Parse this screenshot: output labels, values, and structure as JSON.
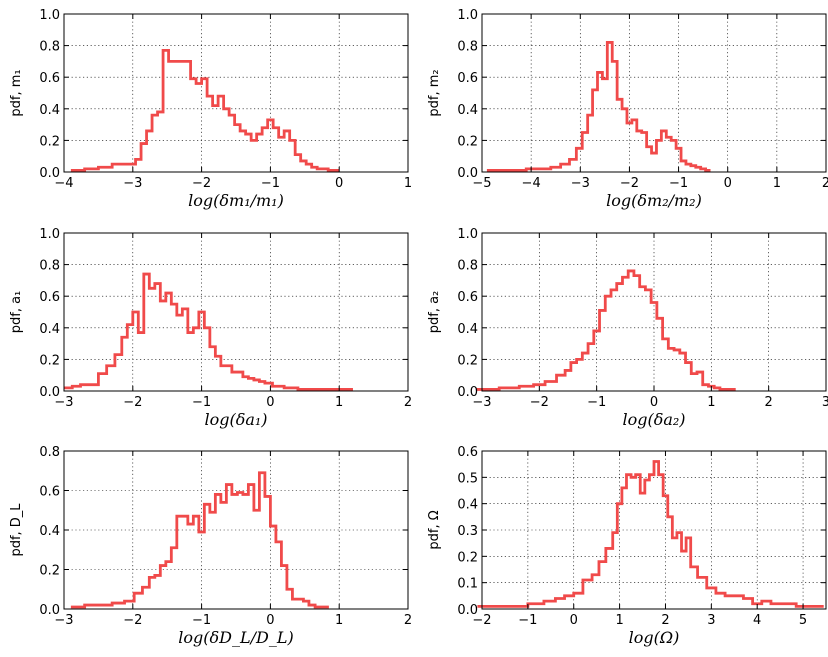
{
  "chart_data": [
    {
      "type": "line",
      "drawstyle": "steps",
      "xlabel": "log(δm₁/m₁)",
      "ylabel": "pdf, m₁",
      "xlim": [
        -4,
        1
      ],
      "ylim": [
        0,
        1.0
      ],
      "xticks": [
        -4,
        -3,
        -2,
        -1,
        0,
        1
      ],
      "xtick_labels": [
        "−4",
        "−3",
        "−2",
        "−1",
        "0",
        "1"
      ],
      "yticks": [
        0,
        0.2,
        0.4,
        0.6,
        0.8,
        1.0
      ],
      "ytick_labels": [
        "0.0",
        "0.2",
        "0.4",
        "0.6",
        "0.8",
        "1.0"
      ],
      "grid": true,
      "color": "#f04a4a",
      "x": [
        -3.8,
        -3.6,
        -3.4,
        -3.2,
        -3.0,
        -2.92,
        -2.84,
        -2.76,
        -2.68,
        -2.6,
        -2.52,
        -2.44,
        -2.36,
        -2.28,
        -2.2,
        -2.12,
        -2.04,
        -1.96,
        -1.88,
        -1.8,
        -1.72,
        -1.64,
        -1.56,
        -1.48,
        -1.4,
        -1.32,
        -1.24,
        -1.16,
        -1.08,
        -1.0,
        -0.92,
        -0.84,
        -0.76,
        -0.68,
        -0.6,
        -0.52,
        -0.44,
        -0.36,
        -0.28,
        -0.2,
        -0.12,
        -0.04
      ],
      "y": [
        0.01,
        0.02,
        0.03,
        0.05,
        0.05,
        0.08,
        0.18,
        0.26,
        0.36,
        0.38,
        0.77,
        0.7,
        0.7,
        0.7,
        0.7,
        0.59,
        0.56,
        0.59,
        0.48,
        0.42,
        0.48,
        0.4,
        0.36,
        0.3,
        0.26,
        0.24,
        0.2,
        0.24,
        0.28,
        0.33,
        0.28,
        0.22,
        0.26,
        0.2,
        0.11,
        0.07,
        0.05,
        0.03,
        0.02,
        0.02,
        0.01,
        0.01
      ]
    },
    {
      "type": "line",
      "drawstyle": "steps",
      "xlabel": "log(δm₂/m₂)",
      "ylabel": "pdf, m₂",
      "xlim": [
        -5,
        2
      ],
      "ylim": [
        0,
        1.0
      ],
      "xticks": [
        -5,
        -4,
        -3,
        -2,
        -1,
        0,
        1,
        2
      ],
      "xtick_labels": [
        "−5",
        "−4",
        "−3",
        "−2",
        "−1",
        "0",
        "1",
        "2"
      ],
      "yticks": [
        0,
        0.2,
        0.4,
        0.6,
        0.8,
        1.0
      ],
      "ytick_labels": [
        "0.0",
        "0.2",
        "0.4",
        "0.6",
        "0.8",
        "1.0"
      ],
      "grid": true,
      "color": "#f04a4a",
      "x": [
        -4.5,
        -3.7,
        -3.5,
        -3.3,
        -3.14,
        -3.02,
        -2.9,
        -2.8,
        -2.7,
        -2.6,
        -2.5,
        -2.4,
        -2.3,
        -2.2,
        -2.1,
        -2.0,
        -1.9,
        -1.8,
        -1.7,
        -1.6,
        -1.5,
        -1.4,
        -1.3,
        -1.2,
        -1.1,
        -1.0,
        -0.9,
        -0.8,
        -0.7,
        -0.6,
        -0.5,
        -0.4
      ],
      "y": [
        0.01,
        0.02,
        0.03,
        0.05,
        0.08,
        0.15,
        0.25,
        0.36,
        0.52,
        0.63,
        0.59,
        0.82,
        0.7,
        0.46,
        0.4,
        0.31,
        0.33,
        0.26,
        0.25,
        0.16,
        0.12,
        0.2,
        0.26,
        0.22,
        0.2,
        0.15,
        0.07,
        0.05,
        0.04,
        0.03,
        0.02,
        0.01
      ]
    },
    {
      "type": "line",
      "drawstyle": "steps",
      "xlabel": "log(δa₁)",
      "ylabel": "pdf, a₁",
      "xlim": [
        -3,
        2
      ],
      "ylim": [
        0,
        1.0
      ],
      "xticks": [
        -3,
        -2,
        -1,
        0,
        1,
        2
      ],
      "xtick_labels": [
        "−3",
        "−2",
        "−1",
        "0",
        "1",
        "2"
      ],
      "yticks": [
        0,
        0.2,
        0.4,
        0.6,
        0.8,
        1.0
      ],
      "ytick_labels": [
        "0.0",
        "0.2",
        "0.4",
        "0.6",
        "0.8",
        "1.0"
      ],
      "grid": true,
      "color": "#f04a4a",
      "x": [
        -2.94,
        -2.82,
        -2.7,
        -2.56,
        -2.44,
        -2.32,
        -2.2,
        -2.12,
        -2.04,
        -1.96,
        -1.88,
        -1.8,
        -1.72,
        -1.64,
        -1.56,
        -1.48,
        -1.4,
        -1.32,
        -1.24,
        -1.16,
        -1.08,
        -1.0,
        -0.92,
        -0.84,
        -0.76,
        -0.68,
        -0.6,
        -0.52,
        -0.44,
        -0.36,
        -0.28,
        -0.2,
        -0.12,
        -0.04,
        0.1,
        0.3,
        0.5,
        0.7,
        0.9,
        1.1
      ],
      "y": [
        0.02,
        0.03,
        0.04,
        0.04,
        0.11,
        0.16,
        0.23,
        0.34,
        0.42,
        0.5,
        0.37,
        0.74,
        0.65,
        0.68,
        0.57,
        0.62,
        0.55,
        0.48,
        0.52,
        0.37,
        0.4,
        0.5,
        0.4,
        0.28,
        0.22,
        0.16,
        0.16,
        0.12,
        0.12,
        0.09,
        0.08,
        0.07,
        0.06,
        0.05,
        0.03,
        0.02,
        0.01,
        0.01,
        0.01,
        0.01
      ]
    },
    {
      "type": "line",
      "drawstyle": "steps",
      "xlabel": "log(δa₂)",
      "ylabel": "pdf, a₂",
      "xlim": [
        -3,
        3
      ],
      "ylim": [
        0,
        1.0
      ],
      "xticks": [
        -3,
        -2,
        -1,
        0,
        1,
        2,
        3
      ],
      "xtick_labels": [
        "−3",
        "−2",
        "−1",
        "0",
        "1",
        "2",
        "3"
      ],
      "yticks": [
        0,
        0.2,
        0.4,
        0.6,
        0.8,
        1.0
      ],
      "ytick_labels": [
        "0.0",
        "0.2",
        "0.4",
        "0.6",
        "0.8",
        "1.0"
      ],
      "grid": true,
      "color": "#f04a4a",
      "x": [
        -2.9,
        -2.5,
        -2.2,
        -2.0,
        -1.8,
        -1.6,
        -1.5,
        -1.4,
        -1.3,
        -1.2,
        -1.1,
        -1.0,
        -0.9,
        -0.8,
        -0.7,
        -0.6,
        -0.5,
        -0.4,
        -0.3,
        -0.2,
        -0.1,
        0.0,
        0.1,
        0.2,
        0.3,
        0.4,
        0.5,
        0.6,
        0.7,
        0.8,
        0.9,
        1.0,
        1.1,
        1.2,
        1.35
      ],
      "y": [
        0.01,
        0.02,
        0.03,
        0.04,
        0.06,
        0.1,
        0.13,
        0.18,
        0.2,
        0.24,
        0.3,
        0.38,
        0.51,
        0.6,
        0.64,
        0.68,
        0.72,
        0.76,
        0.73,
        0.66,
        0.64,
        0.56,
        0.46,
        0.33,
        0.27,
        0.26,
        0.24,
        0.18,
        0.11,
        0.12,
        0.04,
        0.03,
        0.02,
        0.01,
        0.01
      ]
    },
    {
      "type": "line",
      "drawstyle": "steps",
      "xlabel": "log(δD_L/D_L)",
      "ylabel": "pdf, D_L",
      "xlim": [
        -3,
        2
      ],
      "ylim": [
        0,
        0.8
      ],
      "xticks": [
        -3,
        -2,
        -1,
        0,
        1,
        2
      ],
      "xtick_labels": [
        "−3",
        "−2",
        "−1",
        "0",
        "1",
        "2"
      ],
      "yticks": [
        0,
        0.2,
        0.4,
        0.6,
        0.8
      ],
      "ytick_labels": [
        "0.0",
        "0.2",
        "0.4",
        "0.6",
        "0.8"
      ],
      "grid": true,
      "color": "#f04a4a",
      "x": [
        -2.8,
        -2.6,
        -2.4,
        -2.2,
        -2.04,
        -1.92,
        -1.8,
        -1.72,
        -1.64,
        -1.56,
        -1.48,
        -1.4,
        -1.32,
        -1.24,
        -1.16,
        -1.08,
        -1.0,
        -0.92,
        -0.84,
        -0.76,
        -0.68,
        -0.6,
        -0.52,
        -0.44,
        -0.36,
        -0.28,
        -0.2,
        -0.12,
        -0.04,
        0.04,
        0.12,
        0.2,
        0.28,
        0.36,
        0.44,
        0.52,
        0.6,
        0.7,
        0.8
      ],
      "y": [
        0.01,
        0.02,
        0.02,
        0.03,
        0.04,
        0.08,
        0.11,
        0.16,
        0.17,
        0.22,
        0.24,
        0.31,
        0.47,
        0.47,
        0.43,
        0.47,
        0.39,
        0.53,
        0.49,
        0.58,
        0.54,
        0.63,
        0.58,
        0.59,
        0.58,
        0.63,
        0.5,
        0.69,
        0.57,
        0.42,
        0.34,
        0.22,
        0.1,
        0.05,
        0.05,
        0.04,
        0.02,
        0.01,
        0.01
      ]
    },
    {
      "type": "line",
      "drawstyle": "steps",
      "xlabel": "log(Ω)",
      "ylabel": "pdf, Ω",
      "xlim": [
        -2,
        5.5
      ],
      "ylim": [
        0,
        0.6
      ],
      "xticks": [
        -2,
        -1,
        0,
        1,
        2,
        3,
        4,
        5
      ],
      "xtick_labels": [
        "−2",
        "−1",
        "0",
        "1",
        "2",
        "3",
        "4",
        "5"
      ],
      "yticks": [
        0,
        0.1,
        0.2,
        0.3,
        0.4,
        0.5,
        0.6
      ],
      "ytick_labels": [
        "0.0",
        "0.1",
        "0.2",
        "0.3",
        "0.4",
        "0.5",
        "0.6"
      ],
      "grid": true,
      "color": "#f04a4a",
      "x": [
        -1.8,
        -1.2,
        -0.8,
        -0.5,
        -0.3,
        -0.1,
        0.1,
        0.3,
        0.5,
        0.6,
        0.8,
        0.9,
        1.0,
        1.1,
        1.2,
        1.3,
        1.4,
        1.5,
        1.6,
        1.7,
        1.8,
        1.9,
        2.0,
        2.1,
        2.2,
        2.3,
        2.4,
        2.5,
        2.6,
        2.8,
        3.0,
        3.2,
        3.4,
        3.6,
        3.8,
        4.0,
        4.2,
        4.4,
        4.7,
        5.0,
        5.3
      ],
      "y": [
        0.01,
        0.01,
        0.02,
        0.03,
        0.04,
        0.05,
        0.06,
        0.11,
        0.13,
        0.18,
        0.23,
        0.29,
        0.4,
        0.46,
        0.51,
        0.5,
        0.51,
        0.44,
        0.49,
        0.51,
        0.56,
        0.51,
        0.43,
        0.35,
        0.27,
        0.29,
        0.22,
        0.27,
        0.16,
        0.12,
        0.08,
        0.06,
        0.05,
        0.05,
        0.04,
        0.02,
        0.03,
        0.02,
        0.02,
        0.01,
        0.01
      ]
    }
  ]
}
